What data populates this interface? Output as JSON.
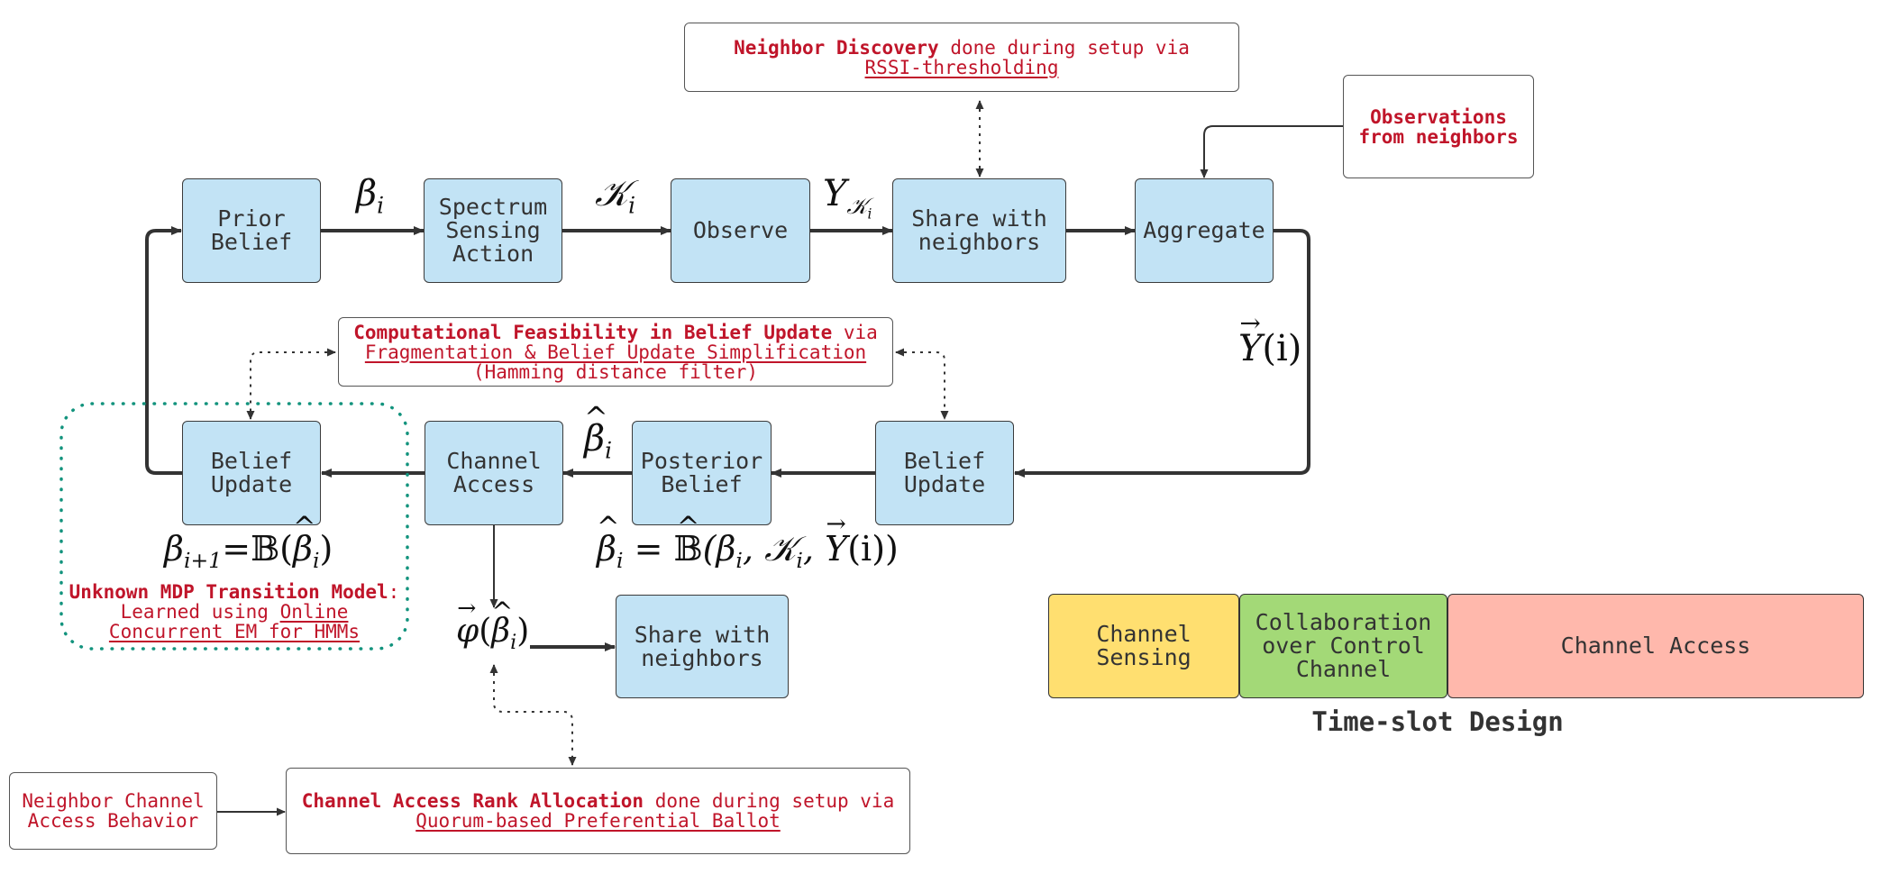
{
  "nodes": {
    "prior_belief": [
      "Prior",
      "Belief"
    ],
    "spectrum_sensing": [
      "Spectrum",
      "Sensing",
      "Action"
    ],
    "observe": "Observe",
    "share_top": [
      "Share with",
      "neighbors"
    ],
    "aggregate": "Aggregate",
    "belief_update_right": [
      "Belief",
      "Update"
    ],
    "posterior_belief": [
      "Posterior",
      "Belief"
    ],
    "channel_access": [
      "Channel",
      "Access"
    ],
    "belief_update_left": [
      "Belief",
      "Update"
    ],
    "share_bottom": [
      "Share with",
      "neighbors"
    ]
  },
  "notes": {
    "neighbor_discovery": {
      "bold": "Neighbor Discovery",
      "rest": " done during setup via",
      "link": "RSSI-thresholding"
    },
    "observations": [
      "Observations",
      "from neighbors"
    ],
    "computational": {
      "bold": "Computational Feasibility in Belief Update",
      "rest": " via",
      "link": "Fragmentation & Belief Update Simplification",
      "line3": "(Hamming distance filter)"
    },
    "unknown_mdp": {
      "bold": "Unknown MDP Transition Model",
      "colon": ":",
      "line2_plain": "Learned using ",
      "line2_link": "Online",
      "line3_link": "Concurrent EM for HMMs"
    },
    "neighbor_channel": [
      "Neighbor Channel",
      "Access Behavior"
    ],
    "rank_allocation": {
      "bold": "Channel Access Rank Allocation",
      "rest": " done during setup via",
      "link": "Quorum-based Preferential Ballot"
    }
  },
  "math": {
    "beta_i": "β",
    "beta_i_sub": "i",
    "kappa_i": "𝒦",
    "kappa_i_sub": "i",
    "y_k": "Y",
    "y_k_sub": "𝒦",
    "y_k_subsub": "i",
    "y_vec": "Y",
    "y_vec_arg": "(i)",
    "beta_hat": "β",
    "beta_hat_sub": "i",
    "update_rule": {
      "lhs": "β",
      "lhs_sub": "i+1",
      "eq": "=",
      "op": "𝔹(",
      "arg": "β",
      "arg_sub": "i",
      "close": ")"
    },
    "posterior_rule": {
      "lhs": "β",
      "lhs_sub": "i",
      "eq": " = ",
      "op": "𝔹",
      "open": "(β",
      "b_sub": "i",
      "comma1": ", 𝒦",
      "k_sub": "i",
      "comma2": ", ",
      "y": "Y",
      "tail": "(i))"
    },
    "phi": {
      "phi": "φ",
      "open": "(",
      "arg": "β",
      "arg_sub": "i",
      "close": ")"
    }
  },
  "time_slot": {
    "segments": [
      {
        "label": [
          "Channel",
          "Sensing"
        ],
        "color": "#ffdf70"
      },
      {
        "label": [
          "Collaboration",
          "over Control",
          "Channel"
        ],
        "color": "#a3d977"
      },
      {
        "label": [
          "Channel Access"
        ],
        "color": "#ffb8ac"
      }
    ],
    "title": "Time-slot Design"
  },
  "colors": {
    "node_fill": "#c2e3f5",
    "note_text": "#c0152a",
    "loop_border": "#12937d"
  }
}
